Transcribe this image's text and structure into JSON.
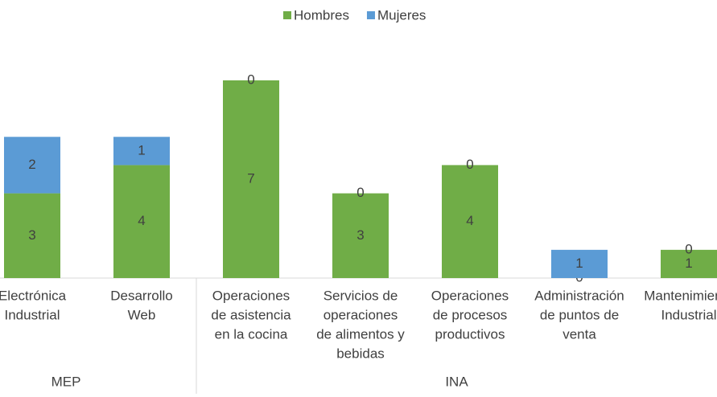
{
  "chart_data": {
    "type": "stacked_bar",
    "categories": [
      [
        "Electrónica",
        "Industrial"
      ],
      [
        "Desarrollo",
        "Web"
      ],
      [
        "Operaciones",
        "de asistencia",
        "en la cocina"
      ],
      [
        "Servicios de",
        "operaciones",
        "de alimentos y",
        "bebidas"
      ],
      [
        "Operaciones",
        "de procesos",
        "productivos"
      ],
      [
        "Administración",
        "de puntos de",
        "venta"
      ],
      [
        "Mantenimiento",
        "Industrial"
      ]
    ],
    "groups": [
      {
        "label": "MEP",
        "count": 2
      },
      {
        "label": "INA",
        "count": 5
      }
    ],
    "series": [
      {
        "name": "Hombres",
        "color": "#70ad47",
        "values": [
          3,
          4,
          7,
          3,
          4,
          0,
          1
        ]
      },
      {
        "name": "Mujeres",
        "color": "#5b9bd5",
        "values": [
          2,
          1,
          0,
          0,
          0,
          1,
          0
        ]
      }
    ],
    "ylim": [
      0,
      7
    ],
    "legend": "top"
  }
}
